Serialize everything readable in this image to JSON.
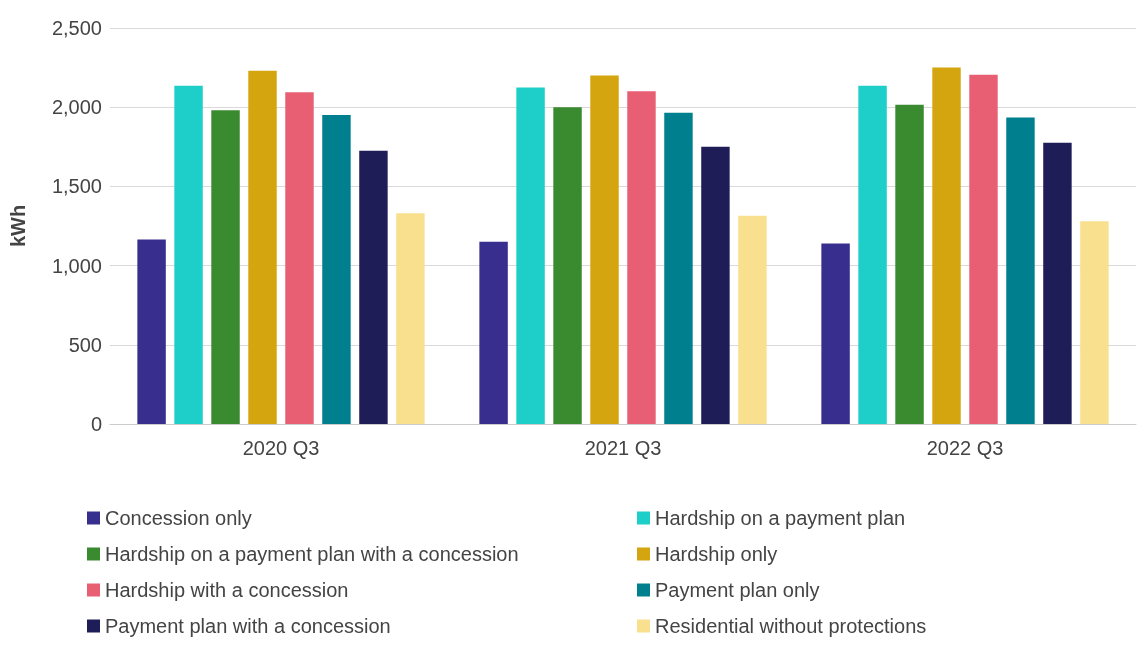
{
  "chart_data": {
    "type": "bar",
    "ylabel": "kWh",
    "categories": [
      "2020 Q3",
      "2021 Q3",
      "2022 Q3"
    ],
    "series": [
      {
        "name": "Concession only",
        "color": "#372e8e",
        "values": [
          1165,
          1150,
          1140
        ]
      },
      {
        "name": "Hardship on a payment plan",
        "color": "#1ecfc9",
        "values": [
          2135,
          2125,
          2135
        ]
      },
      {
        "name": "Hardship on a payment plan with a concession",
        "color": "#3a8a2f",
        "values": [
          1980,
          2000,
          2015
        ]
      },
      {
        "name": "Hardship only",
        "color": "#d4a50e",
        "values": [
          2230,
          2200,
          2250
        ]
      },
      {
        "name": "Hardship with a concession",
        "color": "#e85f74",
        "values": [
          2095,
          2100,
          2205
        ]
      },
      {
        "name": "Payment plan only",
        "color": "#00808f",
        "values": [
          1950,
          1965,
          1935
        ]
      },
      {
        "name": "Payment plan with a concession",
        "color": "#1f1d57",
        "values": [
          1725,
          1750,
          1775
        ]
      },
      {
        "name": "Residential without protections",
        "color": "#f8e08e",
        "values": [
          1330,
          1315,
          1280
        ]
      }
    ],
    "ylim": [
      0,
      2500
    ],
    "yticks": [
      0,
      500,
      {
        "value": 1000,
        "label": "1,000"
      },
      {
        "value": 1500,
        "label": "1,500"
      },
      {
        "value": 2000,
        "label": "2,000"
      },
      {
        "value": 2500,
        "label": "2,500"
      }
    ],
    "grid": "y",
    "legend": "bottom"
  }
}
